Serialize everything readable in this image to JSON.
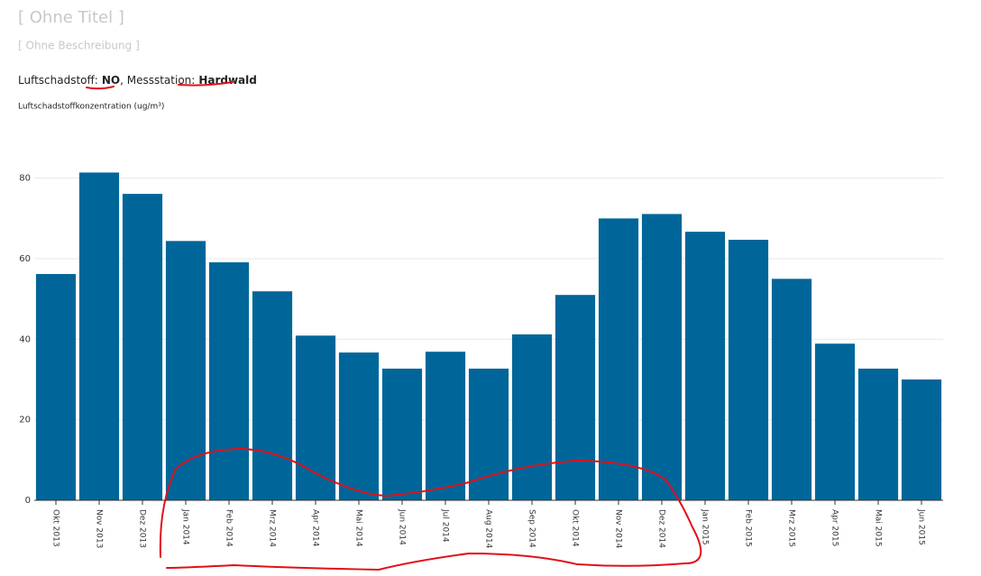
{
  "chart_data": {
    "type": "bar",
    "title": "[ Ohne Titel ]",
    "subtitle": "[ Ohne Beschreibung ]",
    "pollutant_label": "Luftschadstoff:",
    "pollutant": "NO",
    "station_label": ", Messstation:",
    "station": "Hardwald",
    "y_label": "Luftschadstoffkonzentration (ug/m³)",
    "categories": [
      "Okt 2013",
      "Nov 2013",
      "Dez 2013",
      "Jan 2014",
      "Feb 2014",
      "Mrz 2014",
      "Apr 2014",
      "Mai 2014",
      "Jun 2014",
      "Jul 2014",
      "Aug 2014",
      "Sep 2014",
      "Okt 2014",
      "Nov 2014",
      "Dez 2014",
      "Jan 2015",
      "Feb 2015",
      "Mrz 2015",
      "Apr 2015",
      "Mai 2015",
      "Jun 2015"
    ],
    "values": [
      56.2,
      81.4,
      76.1,
      64.4,
      59.1,
      51.9,
      40.9,
      36.7,
      32.7,
      36.9,
      32.7,
      41.2,
      51.0,
      70.0,
      71.1,
      66.7,
      64.7,
      55.0,
      38.9,
      32.7,
      30.0
    ],
    "color": "#006699",
    "ylim": [
      0,
      90
    ],
    "yticks": [
      0,
      20,
      40,
      60,
      80
    ],
    "grid": true
  }
}
